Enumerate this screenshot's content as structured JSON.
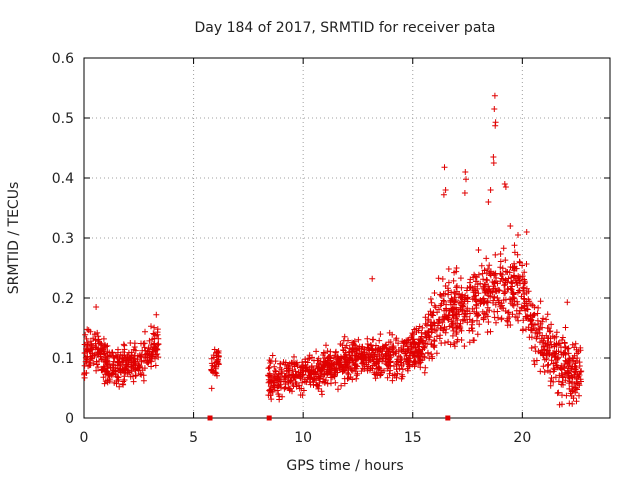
{
  "chart_data": {
    "type": "scatter",
    "title": "Day 184 of 2017, SRMTID for receiver pata",
    "xlabel": "GPS time / hours",
    "ylabel": "SRMTID / TECUs",
    "xlim": [
      0,
      24
    ],
    "ylim": [
      0,
      0.6
    ],
    "grid": true,
    "x_ticks": [
      0,
      5,
      10,
      15,
      20
    ],
    "x_tick_labels": [
      "0",
      "5",
      "10",
      "15",
      "20"
    ],
    "y_ticks": [
      0,
      0.1,
      0.2,
      0.3,
      0.4,
      0.5,
      0.6
    ],
    "y_tick_labels": [
      "0",
      "0.1",
      "0.2",
      "0.3",
      "0.4",
      "0.5",
      "0.6"
    ],
    "marker": "plus",
    "color": "#e00000",
    "zero_markers": [
      5.75,
      8.45,
      16.6
    ],
    "series": [
      {
        "name": "SRMTID",
        "segments": [
          {
            "x_range": [
              0.0,
              3.4
            ],
            "y_points": [
              [
                0,
                0.1
              ],
              [
                0.5,
                0.12
              ],
              [
                1.0,
                0.09
              ],
              [
                1.5,
                0.08
              ],
              [
                2.0,
                0.09
              ],
              [
                2.5,
                0.09
              ],
              [
                3.0,
                0.11
              ],
              [
                3.4,
                0.13
              ]
            ],
            "spread": 0.03
          },
          {
            "x_range": [
              5.8,
              6.15
            ],
            "y_points": [
              [
                5.8,
                0.08
              ],
              [
                6.15,
                0.1
              ]
            ],
            "spread": 0.025
          },
          {
            "x_range": [
              8.4,
              15.5
            ],
            "y_points": [
              [
                8.4,
                0.06
              ],
              [
                9.5,
                0.07
              ],
              [
                10.5,
                0.075
              ],
              [
                11.5,
                0.09
              ],
              [
                12.5,
                0.1
              ],
              [
                13.5,
                0.1
              ],
              [
                14.5,
                0.1
              ],
              [
                15.5,
                0.12
              ]
            ],
            "spread": 0.03
          },
          {
            "x_range": [
              15.5,
              22.7
            ],
            "y_points": [
              [
                15.5,
                0.12
              ],
              [
                16.0,
                0.15
              ],
              [
                16.6,
                0.18
              ],
              [
                17.3,
                0.18
              ],
              [
                18.0,
                0.2
              ],
              [
                18.7,
                0.22
              ],
              [
                19.3,
                0.21
              ],
              [
                19.9,
                0.22
              ],
              [
                20.6,
                0.14
              ],
              [
                21.3,
                0.11
              ],
              [
                22.0,
                0.08
              ],
              [
                22.7,
                0.08
              ]
            ],
            "spread": 0.05
          }
        ],
        "highlights": [
          {
            "x": 18.75,
            "y": 0.537
          },
          {
            "x": 18.72,
            "y": 0.515
          },
          {
            "x": 18.78,
            "y": 0.493
          },
          {
            "x": 18.76,
            "y": 0.487
          },
          {
            "x": 18.68,
            "y": 0.435
          },
          {
            "x": 18.7,
            "y": 0.425
          },
          {
            "x": 16.45,
            "y": 0.418
          },
          {
            "x": 16.5,
            "y": 0.38
          },
          {
            "x": 16.42,
            "y": 0.372
          },
          {
            "x": 17.4,
            "y": 0.41
          },
          {
            "x": 17.43,
            "y": 0.398
          },
          {
            "x": 17.38,
            "y": 0.375
          },
          {
            "x": 18.55,
            "y": 0.38
          },
          {
            "x": 19.2,
            "y": 0.39
          },
          {
            "x": 19.25,
            "y": 0.385
          },
          {
            "x": 18.45,
            "y": 0.36
          },
          {
            "x": 19.45,
            "y": 0.32
          },
          {
            "x": 19.8,
            "y": 0.305
          },
          {
            "x": 20.2,
            "y": 0.31
          },
          {
            "x": 13.15,
            "y": 0.232
          },
          {
            "x": 0.55,
            "y": 0.185
          },
          {
            "x": 3.3,
            "y": 0.172
          },
          {
            "x": 22.05,
            "y": 0.193
          },
          {
            "x": 21.7,
            "y": 0.022
          },
          {
            "x": 16.5,
            "y": 0.22
          },
          {
            "x": 17.0,
            "y": 0.25
          },
          {
            "x": 18.0,
            "y": 0.28
          }
        ]
      }
    ]
  }
}
